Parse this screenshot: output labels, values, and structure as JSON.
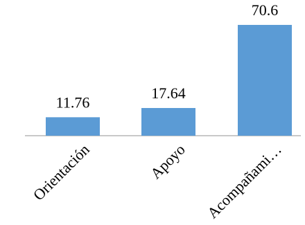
{
  "chart_data": {
    "type": "bar",
    "categories": [
      "Orientación",
      "Apoyo",
      "Acompañami…"
    ],
    "values": [
      11.76,
      17.64,
      70.6
    ],
    "value_labels": [
      "11.76",
      "17.64",
      "70.6"
    ],
    "title": "",
    "xlabel": "",
    "ylabel": "",
    "ylim": [
      0,
      75
    ],
    "grid": false,
    "legend": "none",
    "bar_color": "#5B9BD5",
    "axis_color": "#A6A6A6"
  }
}
